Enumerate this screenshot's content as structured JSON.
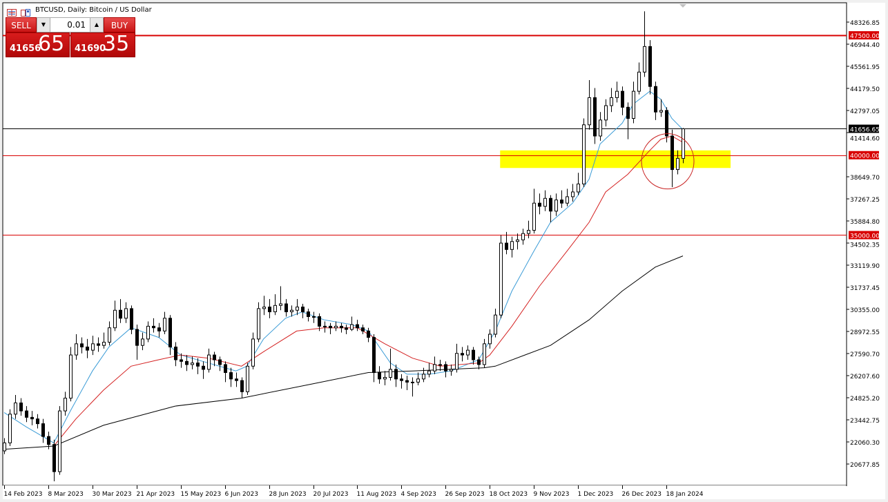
{
  "header": {
    "title": "BTCUSD, Daily:  Bitcoin / US Dollar",
    "icons": [
      "chart-list-icon",
      "symbol-book-icon"
    ]
  },
  "trade_panel": {
    "sell_label": "SELL",
    "buy_label": "BUY",
    "lot": "0.01",
    "sell_price_main": "41656",
    "sell_price_big": "65",
    "buy_price_main": "41690",
    "buy_price_big": "35"
  },
  "colors": {
    "bull_body": "#ffffff",
    "bear_body": "#000000",
    "ma_fast": "#3a9bd6",
    "ma_mid": "#d42020",
    "ma_slow": "#000000",
    "level_line": "#d80000",
    "zone": "#ffff00"
  },
  "chart_data": {
    "type": "candlestick",
    "symbol": "BTCUSD",
    "timeframe": "Daily",
    "ylim": [
      20100,
      49600
    ],
    "y_ticks": [
      "48326.85",
      "46944.40",
      "45561.95",
      "44179.50",
      "42797.05",
      "41414.60",
      "38649.70",
      "37267.25",
      "35884.80",
      "34502.35",
      "33119.90",
      "31737.45",
      "30355.00",
      "28972.55",
      "27590.70",
      "26207.60",
      "24825.20",
      "23442.75",
      "22060.30",
      "20677.85"
    ],
    "x_ticks": [
      "14 Feb 2023",
      "8 Mar 2023",
      "30 Mar 2023",
      "21 Apr 2023",
      "15 May 2023",
      "6 Jun 2023",
      "28 Jun 2023",
      "20 Jul 2023",
      "11 Aug 2023",
      "4 Sep 2023",
      "26 Sep 2023",
      "18 Oct 2023",
      "9 Nov 2023",
      "1 Dec 2023",
      "26 Dec 2023",
      "18 Jan 2024"
    ],
    "candles_per_tick": 8,
    "ohlc": [
      [
        21500,
        22300,
        21300,
        22000
      ],
      [
        22000,
        24100,
        21800,
        23800
      ],
      [
        23800,
        25000,
        23500,
        24500
      ],
      [
        24500,
        24800,
        23700,
        24000
      ],
      [
        24000,
        24300,
        23300,
        23600
      ],
      [
        23600,
        24000,
        23100,
        23500
      ],
      [
        23500,
        23800,
        22900,
        23200
      ],
      [
        23200,
        23500,
        22000,
        22400
      ],
      [
        22400,
        22700,
        21600,
        21900
      ],
      [
        21900,
        22200,
        19600,
        20200
      ],
      [
        20200,
        24300,
        20000,
        24000
      ],
      [
        24000,
        25200,
        23700,
        24800
      ],
      [
        24800,
        28000,
        24600,
        27500
      ],
      [
        27500,
        28800,
        27200,
        28200
      ],
      [
        28200,
        28600,
        27600,
        28000
      ],
      [
        28000,
        28500,
        27300,
        27800
      ],
      [
        27800,
        28700,
        27500,
        28200
      ],
      [
        28200,
        28600,
        27700,
        28100
      ],
      [
        28100,
        28900,
        27900,
        28300
      ],
      [
        28300,
        29600,
        28100,
        29200
      ],
      [
        29200,
        30900,
        29000,
        30300
      ],
      [
        30300,
        31000,
        29500,
        29800
      ],
      [
        29800,
        30800,
        29500,
        30400
      ],
      [
        30400,
        30600,
        28800,
        29100
      ],
      [
        29100,
        29400,
        27200,
        28100
      ],
      [
        28100,
        28900,
        27800,
        28500
      ],
      [
        28500,
        29600,
        28300,
        29300
      ],
      [
        29300,
        29800,
        28900,
        29200
      ],
      [
        29200,
        29500,
        28600,
        29000
      ],
      [
        29000,
        30200,
        28800,
        29800
      ],
      [
        29800,
        30000,
        27500,
        28000
      ],
      [
        28000,
        28300,
        26800,
        27200
      ],
      [
        27200,
        27600,
        26700,
        27100
      ],
      [
        27100,
        27500,
        26500,
        26900
      ],
      [
        26900,
        27400,
        26600,
        27000
      ],
      [
        27000,
        27300,
        26300,
        26800
      ],
      [
        26800,
        27100,
        26000,
        26600
      ],
      [
        26600,
        27900,
        26400,
        27500
      ],
      [
        27500,
        27700,
        26800,
        27200
      ],
      [
        27200,
        27400,
        26500,
        26900
      ],
      [
        26900,
        27100,
        25800,
        26400
      ],
      [
        26400,
        26700,
        25500,
        26000
      ],
      [
        26000,
        26400,
        25500,
        25900
      ],
      [
        25900,
        26100,
        24800,
        25200
      ],
      [
        25200,
        27000,
        25000,
        26800
      ],
      [
        26800,
        28900,
        26600,
        28500
      ],
      [
        28500,
        30800,
        28300,
        30400
      ],
      [
        30400,
        31200,
        30000,
        30500
      ],
      [
        30500,
        31000,
        29800,
        30200
      ],
      [
        30200,
        31300,
        30000,
        30600
      ],
      [
        30600,
        31800,
        30300,
        30700
      ],
      [
        30700,
        31000,
        29900,
        30200
      ],
      [
        30200,
        30600,
        29900,
        30300
      ],
      [
        30300,
        31000,
        30000,
        30500
      ],
      [
        30500,
        30700,
        29800,
        30200
      ],
      [
        30200,
        30400,
        29600,
        29900
      ],
      [
        29900,
        30200,
        29500,
        29900
      ],
      [
        29900,
        30100,
        29000,
        29300
      ],
      [
        29300,
        29600,
        28900,
        29300
      ],
      [
        29300,
        29500,
        28800,
        29200
      ],
      [
        29200,
        29600,
        29000,
        29300
      ],
      [
        29300,
        29500,
        28900,
        29200
      ],
      [
        29200,
        29400,
        28800,
        29100
      ],
      [
        29100,
        29900,
        29000,
        29400
      ],
      [
        29400,
        29700,
        29000,
        29200
      ],
      [
        29200,
        29400,
        28800,
        29000
      ],
      [
        29000,
        29200,
        28300,
        28600
      ],
      [
        28600,
        28800,
        25800,
        26400
      ],
      [
        26400,
        26800,
        25700,
        26000
      ],
      [
        26000,
        26500,
        25600,
        26100
      ],
      [
        26100,
        27900,
        25900,
        26600
      ],
      [
        26600,
        26900,
        25500,
        26000
      ],
      [
        26000,
        26300,
        25400,
        25900
      ],
      [
        25900,
        26200,
        25300,
        25800
      ],
      [
        25800,
        26100,
        24900,
        25800
      ],
      [
        25800,
        26400,
        25600,
        26000
      ],
      [
        26000,
        26700,
        25800,
        26300
      ],
      [
        26300,
        27000,
        26100,
        26500
      ],
      [
        26500,
        27400,
        26300,
        26900
      ],
      [
        26900,
        27200,
        26500,
        26900
      ],
      [
        26900,
        27100,
        26100,
        26500
      ],
      [
        26500,
        26900,
        26200,
        26600
      ],
      [
        26600,
        28200,
        26400,
        27600
      ],
      [
        27600,
        28000,
        27100,
        27500
      ],
      [
        27500,
        28100,
        27200,
        27800
      ],
      [
        27800,
        28000,
        26900,
        27200
      ],
      [
        27200,
        27400,
        26600,
        26900
      ],
      [
        26900,
        28500,
        26700,
        28200
      ],
      [
        28200,
        29100,
        27900,
        28800
      ],
      [
        28800,
        30400,
        28600,
        30000
      ],
      [
        30000,
        35000,
        29800,
        34500
      ],
      [
        34500,
        35200,
        33800,
        34100
      ],
      [
        34100,
        34900,
        33600,
        34600
      ],
      [
        34600,
        35100,
        34100,
        34700
      ],
      [
        34700,
        35400,
        34400,
        35100
      ],
      [
        35100,
        35900,
        34800,
        35300
      ],
      [
        35300,
        37900,
        35100,
        37000
      ],
      [
        37000,
        37600,
        36300,
        36800
      ],
      [
        36800,
        37800,
        36500,
        37300
      ],
      [
        37300,
        37500,
        35800,
        36500
      ],
      [
        36500,
        37600,
        36200,
        37200
      ],
      [
        37200,
        37800,
        36700,
        37000
      ],
      [
        37000,
        37900,
        36800,
        37400
      ],
      [
        37400,
        38200,
        37100,
        37700
      ],
      [
        37700,
        38900,
        37500,
        38200
      ],
      [
        38200,
        42300,
        38000,
        41900
      ],
      [
        41900,
        44700,
        41600,
        43600
      ],
      [
        43600,
        44200,
        40700,
        41200
      ],
      [
        41200,
        42700,
        40900,
        42200
      ],
      [
        42200,
        43500,
        41800,
        43100
      ],
      [
        43100,
        44200,
        42700,
        43600
      ],
      [
        43600,
        44600,
        43300,
        44000
      ],
      [
        44000,
        44300,
        42500,
        43000
      ],
      [
        43000,
        43300,
        41000,
        42300
      ],
      [
        42300,
        44600,
        42000,
        44000
      ],
      [
        44000,
        45800,
        43800,
        45200
      ],
      [
        45200,
        49000,
        44900,
        46800
      ],
      [
        46800,
        47200,
        43800,
        44300
      ],
      [
        44300,
        44600,
        42200,
        42700
      ],
      [
        42700,
        43500,
        42400,
        42800
      ],
      [
        42800,
        43000,
        40800,
        41200
      ],
      [
        41200,
        41600,
        38000,
        39100
      ],
      [
        39100,
        40300,
        38800,
        39800
      ],
      [
        39800,
        41700,
        39500,
        41650
      ]
    ],
    "moving_averages": [
      {
        "color": "#3a9bd6",
        "points": [
          [
            0,
            23900
          ],
          [
            4,
            23000
          ],
          [
            9,
            22000
          ],
          [
            12,
            24000
          ],
          [
            16,
            26500
          ],
          [
            19,
            28000
          ],
          [
            23,
            29200
          ],
          [
            28,
            28600
          ],
          [
            32,
            27500
          ],
          [
            37,
            27000
          ],
          [
            42,
            26500
          ],
          [
            44,
            26800
          ],
          [
            47,
            28500
          ],
          [
            51,
            29800
          ],
          [
            54,
            30200
          ],
          [
            58,
            29700
          ],
          [
            63,
            29400
          ],
          [
            66,
            29000
          ],
          [
            70,
            27000
          ],
          [
            73,
            26300
          ],
          [
            77,
            26300
          ],
          [
            81,
            26500
          ],
          [
            86,
            27200
          ],
          [
            89,
            29000
          ],
          [
            92,
            31500
          ],
          [
            96,
            34000
          ],
          [
            99,
            35800
          ],
          [
            103,
            37000
          ],
          [
            106,
            38500
          ],
          [
            108,
            40700
          ],
          [
            112,
            42000
          ],
          [
            114,
            43200
          ],
          [
            117,
            44000
          ],
          [
            119,
            43500
          ],
          [
            121,
            42300
          ],
          [
            123,
            41600
          ]
        ]
      },
      {
        "color": "#d42020",
        "points": [
          [
            9,
            21800
          ],
          [
            13,
            23500
          ],
          [
            18,
            25300
          ],
          [
            23,
            26800
          ],
          [
            28,
            27200
          ],
          [
            32,
            27500
          ],
          [
            37,
            27300
          ],
          [
            43,
            26800
          ],
          [
            47,
            27700
          ],
          [
            53,
            29000
          ],
          [
            58,
            29200
          ],
          [
            64,
            29200
          ],
          [
            69,
            28200
          ],
          [
            74,
            27300
          ],
          [
            79,
            26800
          ],
          [
            86,
            27000
          ],
          [
            88,
            27500
          ],
          [
            92,
            29300
          ],
          [
            97,
            31800
          ],
          [
            102,
            34000
          ],
          [
            106,
            35800
          ],
          [
            109,
            37700
          ],
          [
            113,
            38800
          ],
          [
            117,
            40300
          ],
          [
            119,
            41000
          ],
          [
            121,
            41200
          ],
          [
            123,
            40800
          ]
        ]
      },
      {
        "color": "#000000",
        "points": [
          [
            0,
            21600
          ],
          [
            9,
            21800
          ],
          [
            18,
            23100
          ],
          [
            31,
            24300
          ],
          [
            43,
            24800
          ],
          [
            56,
            25700
          ],
          [
            66,
            26400
          ],
          [
            74,
            26500
          ],
          [
            87,
            26700
          ],
          [
            89,
            26800
          ],
          [
            99,
            28100
          ],
          [
            106,
            29700
          ],
          [
            112,
            31500
          ],
          [
            118,
            33000
          ],
          [
            123,
            33700
          ]
        ]
      }
    ],
    "levels": [
      {
        "price": 47500,
        "label": "47500.00",
        "color": "#d80000",
        "width": 2
      },
      {
        "price": 40000,
        "label": "40000.00",
        "color": "#d80000",
        "width": 1
      },
      {
        "price": 35000,
        "label": "35000.00",
        "color": "#d80000",
        "width": 1
      }
    ],
    "current_price": {
      "price": 41656.65,
      "label": "41656.65"
    },
    "zone": {
      "from_candle": 90,
      "price_high": 40300,
      "price_low": 39200,
      "color": "#ffff00"
    },
    "circle_annotation": {
      "candle": 121,
      "price": 39700,
      "color": "#c82020"
    }
  }
}
